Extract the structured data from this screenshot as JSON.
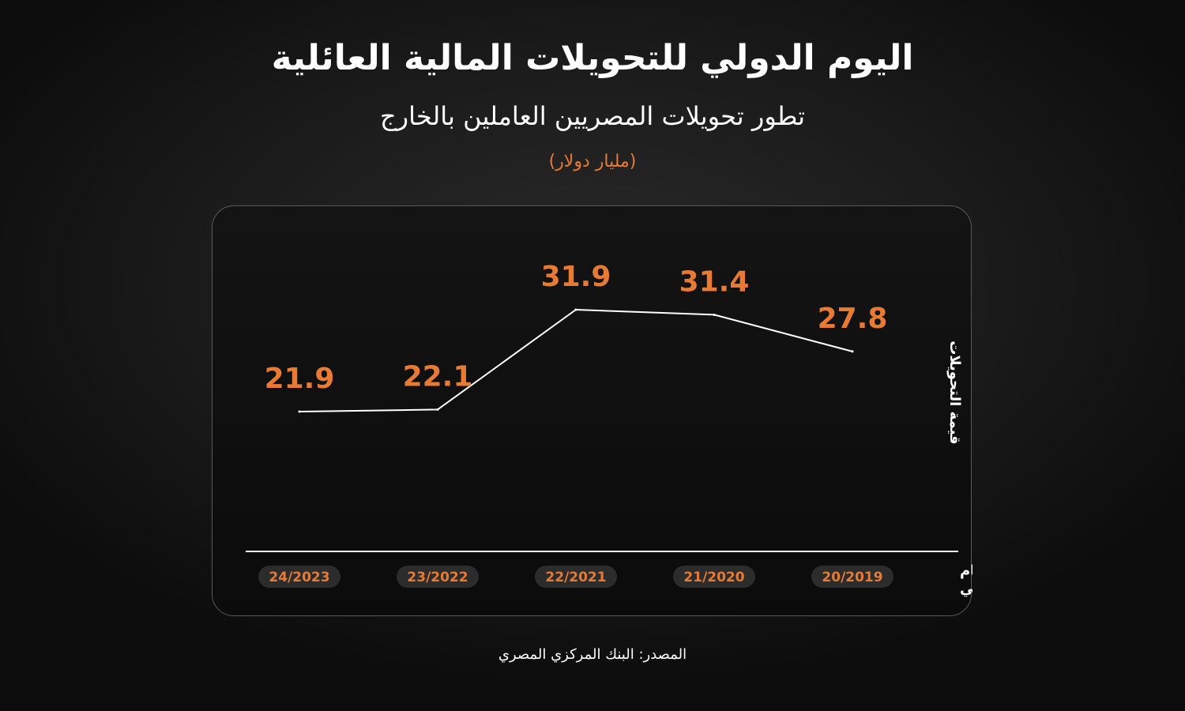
{
  "header": {
    "title": "اليوم الدولي للتحويلات المالية العائلية",
    "subtitle": "تطور تحويلات المصريين العاملين بالخارج",
    "unit": "(مليار دولار)"
  },
  "footer": {
    "source": "المصدر: البنك المركزي المصري"
  },
  "colors": {
    "accent": "#e87b33",
    "line": "#ffffff",
    "pill_bg": "#2c2c2c"
  },
  "chart_data": {
    "type": "line",
    "categories": [
      "24/2023",
      "23/2022",
      "22/2021",
      "21/2020",
      "20/2019"
    ],
    "values": [
      21.9,
      22.1,
      31.9,
      31.4,
      27.8
    ],
    "value_labels": [
      "21.9",
      "22.1",
      "31.9",
      "31.4",
      "27.8"
    ],
    "xlabel_lines": [
      "العام",
      "المالي"
    ],
    "ylabel": "قيمة التحويلات",
    "grid": false,
    "ylim": [
      0,
      40
    ]
  }
}
